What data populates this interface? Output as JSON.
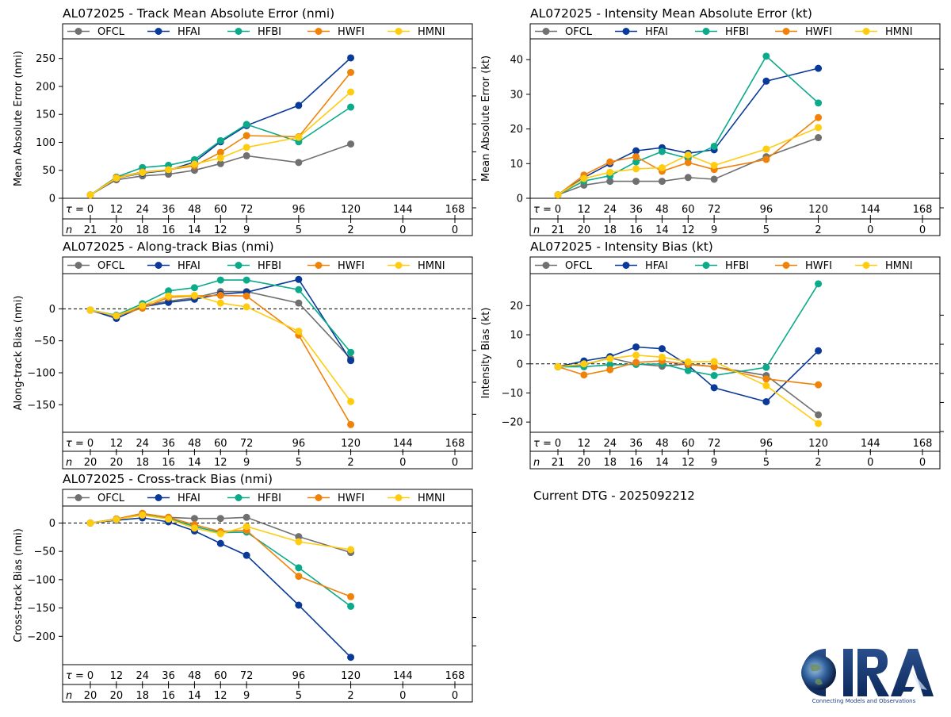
{
  "footer": {
    "dtg": "Current DTG - 2025092212",
    "logo_text": "CIRA",
    "logo_tagline": "Connecting Models and Observations"
  },
  "colors": {
    "OFCL": "#707070",
    "HFAI": "#0a3a99",
    "HFBI": "#0aaa8a",
    "HWFI": "#f0820a",
    "HMNI": "#ffcc10"
  },
  "chart_data": [
    {
      "id": "track-mae",
      "type": "line",
      "title": "AL072025 - Track Mean Absolute Error (nmi)",
      "ylabel": "Mean Absolute Error (nmi)",
      "xlabel": "",
      "ylim": [
        0,
        285
      ],
      "yticks": [
        0,
        50,
        100,
        150,
        200,
        250
      ],
      "zero_line": false,
      "legend_position": "top",
      "tau_label": "τ = ",
      "n_label": "n",
      "tau": [
        0,
        12,
        24,
        36,
        48,
        60,
        72,
        96,
        120,
        144,
        168
      ],
      "n": [
        21,
        20,
        18,
        16,
        14,
        12,
        9,
        5,
        2,
        0,
        0
      ],
      "series": [
        {
          "name": "OFCL",
          "x": [
            0,
            12,
            24,
            36,
            48,
            60,
            72,
            96,
            120
          ],
          "values": [
            6,
            33,
            40,
            43,
            50,
            62,
            76,
            64,
            97
          ]
        },
        {
          "name": "HFAI",
          "x": [
            0,
            12,
            24,
            36,
            48,
            60,
            72,
            96,
            120
          ],
          "values": [
            6,
            36,
            45,
            50,
            65,
            101,
            130,
            166,
            251
          ]
        },
        {
          "name": "HFBI",
          "x": [
            0,
            12,
            24,
            36,
            48,
            60,
            72,
            96,
            120
          ],
          "values": [
            6,
            38,
            55,
            59,
            69,
            103,
            132,
            101,
            163
          ]
        },
        {
          "name": "HWFI",
          "x": [
            0,
            12,
            24,
            36,
            48,
            60,
            72,
            96,
            120
          ],
          "values": [
            6,
            37,
            47,
            51,
            58,
            82,
            112,
            110,
            225
          ]
        },
        {
          "name": "HMNI",
          "x": [
            0,
            12,
            24,
            36,
            48,
            60,
            72,
            96,
            120
          ],
          "values": [
            6,
            36,
            46,
            51,
            61,
            72,
            91,
            109,
            190
          ]
        }
      ]
    },
    {
      "id": "intensity-mae",
      "type": "line",
      "title": "AL072025 - Intensity Mean Absolute Error (kt)",
      "ylabel": "Mean Absolute Error (kt)",
      "xlabel": "",
      "ylim": [
        0,
        46
      ],
      "yticks": [
        0,
        10,
        20,
        30,
        40
      ],
      "zero_line": false,
      "legend_position": "top",
      "tau_label": "τ = ",
      "n_label": "n",
      "tau": [
        0,
        12,
        24,
        36,
        48,
        60,
        72,
        96,
        120,
        144,
        168
      ],
      "n": [
        21,
        20,
        18,
        16,
        14,
        12,
        9,
        5,
        2,
        0,
        0
      ],
      "series": [
        {
          "name": "OFCL",
          "x": [
            0,
            12,
            24,
            36,
            48,
            60,
            72,
            96,
            120
          ],
          "values": [
            1,
            3.8,
            4.9,
            4.9,
            4.9,
            6,
            5.5,
            12,
            17.5
          ]
        },
        {
          "name": "HFAI",
          "x": [
            0,
            12,
            24,
            36,
            48,
            60,
            72,
            96,
            120
          ],
          "values": [
            1,
            6,
            10,
            13.7,
            14.6,
            13,
            14,
            33.8,
            37.5
          ]
        },
        {
          "name": "HFBI",
          "x": [
            0,
            12,
            24,
            36,
            48,
            60,
            72,
            96,
            120
          ],
          "values": [
            1,
            5,
            6.5,
            10.5,
            13.5,
            11.5,
            15,
            41,
            27.5
          ]
        },
        {
          "name": "HWFI",
          "x": [
            0,
            12,
            24,
            36,
            48,
            60,
            72,
            96,
            120
          ],
          "values": [
            1,
            6.7,
            10.5,
            12,
            7.8,
            10.3,
            8.3,
            11.2,
            23.3
          ]
        },
        {
          "name": "HMNI",
          "x": [
            0,
            12,
            24,
            36,
            48,
            60,
            72,
            96,
            120
          ],
          "values": [
            1,
            5.7,
            7.5,
            8.5,
            8.8,
            12.5,
            9.5,
            14.2,
            20.4
          ]
        }
      ]
    },
    {
      "id": "along-track-bias",
      "type": "line",
      "title": "AL072025 - Along-track Bias (nmi)",
      "ylabel": "Along-track Bias (nmi)",
      "xlabel": "",
      "ylim": [
        -193,
        55
      ],
      "yticks": [
        -150,
        -100,
        -50,
        0
      ],
      "zero_line": true,
      "legend_position": "top",
      "tau_label": "τ = ",
      "n_label": "n",
      "tau": [
        0,
        12,
        24,
        36,
        48,
        60,
        72,
        96,
        120,
        144,
        168
      ],
      "n": [
        20,
        20,
        18,
        16,
        14,
        12,
        9,
        5,
        2,
        0,
        0
      ],
      "series": [
        {
          "name": "OFCL",
          "x": [
            0,
            12,
            24,
            36,
            48,
            60,
            72,
            96,
            120
          ],
          "values": [
            -2,
            -12,
            5,
            12,
            17,
            27,
            27,
            9,
            -78
          ]
        },
        {
          "name": "HFAI",
          "x": [
            0,
            12,
            24,
            36,
            48,
            60,
            72,
            96,
            120
          ],
          "values": [
            -2,
            -15,
            3,
            10,
            15,
            23,
            26,
            46,
            -81
          ]
        },
        {
          "name": "HFBI",
          "x": [
            0,
            12,
            24,
            36,
            48,
            60,
            72,
            96,
            120
          ],
          "values": [
            -2,
            -10,
            8,
            28,
            33,
            45,
            45,
            30,
            -68
          ]
        },
        {
          "name": "HWFI",
          "x": [
            0,
            12,
            24,
            36,
            48,
            60,
            72,
            96,
            120
          ],
          "values": [
            -2,
            -11,
            1,
            18,
            20,
            21,
            20,
            -41,
            -181
          ]
        },
        {
          "name": "HMNI",
          "x": [
            0,
            12,
            24,
            36,
            48,
            60,
            72,
            96,
            120
          ],
          "values": [
            -2,
            -11,
            5,
            20,
            21,
            9,
            3,
            -35,
            -145
          ]
        }
      ]
    },
    {
      "id": "intensity-bias",
      "type": "line",
      "title": "AL072025 - Intensity Bias (kt)",
      "ylabel": "Intensity Bias (kt)",
      "xlabel": "",
      "ylim": [
        -23.5,
        31
      ],
      "yticks": [
        -20,
        -10,
        0,
        10,
        20
      ],
      "zero_line": true,
      "legend_position": "top",
      "tau_label": "τ = ",
      "n_label": "n",
      "tau": [
        0,
        12,
        24,
        36,
        48,
        60,
        72,
        96,
        120,
        144,
        168
      ],
      "n": [
        21,
        20,
        18,
        16,
        14,
        12,
        9,
        5,
        2,
        0,
        0
      ],
      "series": [
        {
          "name": "OFCL",
          "x": [
            0,
            12,
            24,
            36,
            48,
            60,
            72,
            96,
            120
          ],
          "values": [
            -1,
            -0.3,
            2,
            0,
            -0.8,
            0,
            -1,
            -4,
            -17.5
          ]
        },
        {
          "name": "HFAI",
          "x": [
            0,
            12,
            24,
            36,
            48,
            60,
            72,
            96,
            120
          ],
          "values": [
            -1,
            1,
            2.5,
            5.8,
            5.2,
            -0.5,
            -8.2,
            -13,
            4.5
          ]
        },
        {
          "name": "HFBI",
          "x": [
            0,
            12,
            24,
            36,
            48,
            60,
            72,
            96,
            120
          ],
          "values": [
            -1,
            -1,
            -0.3,
            -0.2,
            0,
            -2.3,
            -4,
            -1.2,
            27.5
          ]
        },
        {
          "name": "HWFI",
          "x": [
            0,
            12,
            24,
            36,
            48,
            60,
            72,
            96,
            120
          ],
          "values": [
            -1,
            -3.8,
            -2,
            0.5,
            1,
            -0.2,
            -1,
            -5.2,
            -7.2
          ]
        },
        {
          "name": "HMNI",
          "x": [
            0,
            12,
            24,
            36,
            48,
            60,
            72,
            96,
            120
          ],
          "values": [
            -1,
            0,
            1.8,
            3,
            2.3,
            0.7,
            0.8,
            -7.5,
            -20.5
          ]
        }
      ]
    },
    {
      "id": "cross-track-bias",
      "type": "line",
      "title": "AL072025 - Cross-track Bias (nmi)",
      "ylabel": "Cross-track Bias (nmi)",
      "xlabel": "",
      "ylim": [
        -250,
        30
      ],
      "yticks": [
        -200,
        -150,
        -100,
        -50,
        0
      ],
      "zero_line": true,
      "legend_position": "top",
      "tau_label": "τ = ",
      "n_label": "n",
      "tau": [
        0,
        12,
        24,
        36,
        48,
        60,
        72,
        96,
        120,
        144,
        168
      ],
      "n": [
        20,
        20,
        18,
        16,
        14,
        12,
        9,
        5,
        2,
        0,
        0
      ],
      "series": [
        {
          "name": "OFCL",
          "x": [
            0,
            12,
            24,
            36,
            48,
            60,
            72,
            96,
            120
          ],
          "values": [
            0,
            7,
            15,
            10,
            8,
            8,
            10,
            -24,
            -52
          ]
        },
        {
          "name": "HFAI",
          "x": [
            0,
            12,
            24,
            36,
            48,
            60,
            72,
            96,
            120
          ],
          "values": [
            0,
            5,
            9,
            2,
            -14,
            -36,
            -57,
            -145,
            -237
          ]
        },
        {
          "name": "HFBI",
          "x": [
            0,
            12,
            24,
            36,
            48,
            60,
            72,
            96,
            120
          ],
          "values": [
            0,
            7,
            17,
            8,
            -6,
            -17,
            -16,
            -79,
            -147
          ]
        },
        {
          "name": "HWFI",
          "x": [
            0,
            12,
            24,
            36,
            48,
            60,
            72,
            96,
            120
          ],
          "values": [
            0,
            7,
            17,
            10,
            -3,
            -15,
            -13,
            -94,
            -130
          ]
        },
        {
          "name": "HMNI",
          "x": [
            0,
            12,
            24,
            36,
            48,
            60,
            72,
            96,
            120
          ],
          "values": [
            0,
            6,
            14,
            7,
            -9,
            -19,
            -6,
            -33,
            -47
          ]
        }
      ]
    }
  ]
}
